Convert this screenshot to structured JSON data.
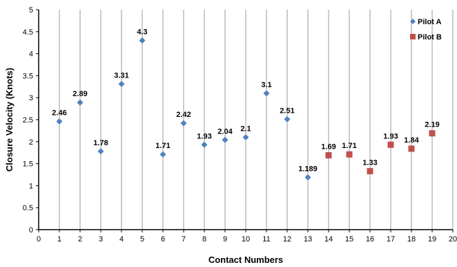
{
  "chart_data": {
    "type": "scatter",
    "xlabel": "Contact Numbers",
    "ylabel": "Closure Velocity (Knots)",
    "xlim": [
      0,
      20
    ],
    "ylim": [
      0,
      5
    ],
    "x_ticks": [
      "0",
      "1",
      "2",
      "3",
      "4",
      "5",
      "6",
      "7",
      "8",
      "9",
      "10",
      "11",
      "12",
      "13",
      "14",
      "15",
      "16",
      "17",
      "18",
      "19",
      "20"
    ],
    "y_ticks": [
      "0",
      "0.5",
      "1",
      "1.5",
      "2",
      "2.5",
      "3",
      "3.5",
      "4",
      "4.5",
      "5"
    ],
    "grid": "vertical",
    "legend_position": "top-right",
    "series": [
      {
        "name": "Pilot A",
        "marker": "diamond",
        "color": "#4f81bd",
        "points": [
          {
            "x": 1,
            "y": 2.46,
            "label": "2.46"
          },
          {
            "x": 2,
            "y": 2.89,
            "label": "2.89"
          },
          {
            "x": 3,
            "y": 1.78,
            "label": "1.78"
          },
          {
            "x": 4,
            "y": 3.31,
            "label": "3.31"
          },
          {
            "x": 5,
            "y": 4.3,
            "label": "4.3"
          },
          {
            "x": 6,
            "y": 1.71,
            "label": "1.71"
          },
          {
            "x": 7,
            "y": 2.42,
            "label": "2.42"
          },
          {
            "x": 8,
            "y": 1.93,
            "label": "1.93"
          },
          {
            "x": 9,
            "y": 2.04,
            "label": "2.04"
          },
          {
            "x": 10,
            "y": 2.1,
            "label": "2.1"
          },
          {
            "x": 11,
            "y": 3.1,
            "label": "3.1"
          },
          {
            "x": 12,
            "y": 2.51,
            "label": "2.51"
          },
          {
            "x": 13,
            "y": 1.189,
            "label": "1.189"
          }
        ]
      },
      {
        "name": "Pilot B",
        "marker": "square",
        "color": "#c0504d",
        "points": [
          {
            "x": 14,
            "y": 1.69,
            "label": "1.69"
          },
          {
            "x": 15,
            "y": 1.71,
            "label": "1.71"
          },
          {
            "x": 16,
            "y": 1.33,
            "label": "1.33"
          },
          {
            "x": 17,
            "y": 1.93,
            "label": "1.93"
          },
          {
            "x": 18,
            "y": 1.84,
            "label": "1.84"
          },
          {
            "x": 19,
            "y": 2.19,
            "label": "2.19"
          }
        ]
      }
    ]
  }
}
